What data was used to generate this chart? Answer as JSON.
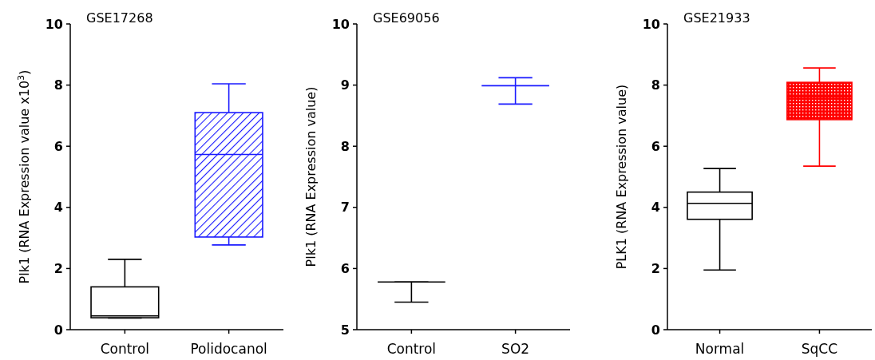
{
  "chart_data": [
    {
      "type": "box",
      "title": "GSE17268",
      "ylabel": "Plk1 (RNA Expression value x10$^{3}$)",
      "categories": [
        "Control",
        "Polidocanol"
      ],
      "colors": [
        "#000000",
        "#1a1aff"
      ],
      "ylim": [
        0,
        10
      ],
      "yticks": [
        0,
        2,
        4,
        6,
        8,
        10
      ],
      "boxes": [
        {
          "low": 0.38,
          "q1": 0.39,
          "median": 0.45,
          "q3": 1.4,
          "high": 2.3
        },
        {
          "low": 2.77,
          "q1": 3.03,
          "median": 5.73,
          "q3": 7.1,
          "high": 8.04
        }
      ]
    },
    {
      "type": "box",
      "title": "GSE69056",
      "ylabel": "Plk1 (RNA Expression value)",
      "categories": [
        "Control",
        "SO2"
      ],
      "colors": [
        "#000000",
        "#1a1aff"
      ],
      "ylim": [
        5,
        10
      ],
      "yticks": [
        5,
        6,
        7,
        8,
        9,
        10
      ],
      "boxes": [
        {
          "low": 5.45,
          "q1": 5.78,
          "median": 5.78,
          "q3": 5.78,
          "high": 5.78
        },
        {
          "low": 8.69,
          "q1": 8.99,
          "median": 8.99,
          "q3": 8.99,
          "high": 9.12
        }
      ]
    },
    {
      "type": "box",
      "title": "GSE21933",
      "ylabel": "PLK1 (RNA Expression value)",
      "categories": [
        "Normal",
        "SqCC"
      ],
      "colors": [
        "#000000",
        "#ff0000"
      ],
      "ylim": [
        0,
        10
      ],
      "yticks": [
        0,
        2,
        4,
        6,
        8,
        10
      ],
      "boxes": [
        {
          "low": 1.95,
          "q1": 3.61,
          "median": 4.13,
          "q3": 4.5,
          "high": 5.27
        },
        {
          "low": 5.35,
          "q1": 6.87,
          "median": 7.62,
          "q3": 8.09,
          "high": 8.56
        }
      ]
    }
  ]
}
